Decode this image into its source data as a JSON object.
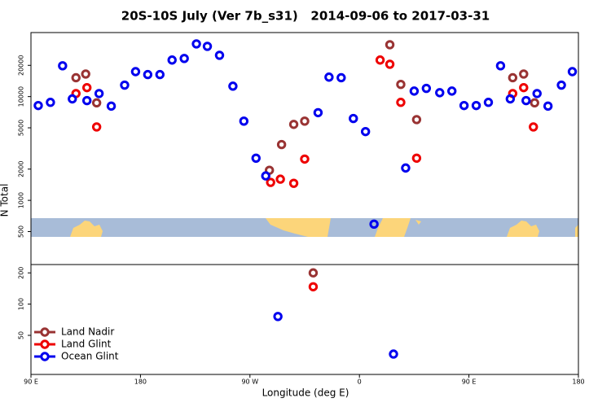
{
  "chart_data": {
    "type": "scatter",
    "title": "20S-10S July (Ver 7b_s31)   2014-09-06 to 2017-03-31",
    "x_label": "Longitude (deg E)",
    "y_label": "N Total",
    "xlim": [
      -270,
      180
    ],
    "ylim": [
      21,
      41400
    ],
    "log_y": true,
    "xticks": [
      {
        "value": -270,
        "label": "90 E"
      },
      {
        "value": -180,
        "label": "180"
      },
      {
        "value": -90,
        "label": "90 W"
      },
      0,
      {
        "value": 90,
        "label": "90 E"
      },
      {
        "value": 180,
        "label": "180"
      }
    ],
    "yticks": [
      50,
      100,
      200,
      500,
      1000,
      2000,
      5000,
      10000,
      20000
    ],
    "legend_position": "lower left",
    "series": [
      {
        "name": "Land Nadir",
        "color": "#993333",
        "x": [
          -233,
          -225,
          -216,
          -74,
          -64,
          -54,
          -45,
          -38,
          25,
          34,
          47,
          126,
          135,
          144
        ],
        "values": [
          15200,
          16500,
          8700,
          1950,
          3450,
          5400,
          5800,
          200,
          31600,
          13100,
          6000,
          15200,
          16500,
          8700
        ]
      },
      {
        "name": "Land Glint",
        "color": "#ee0000",
        "x": [
          -233,
          -224,
          -216,
          -73,
          -65,
          -54,
          -45,
          -38,
          17,
          25,
          34,
          47,
          126,
          135,
          143
        ],
        "values": [
          10700,
          12200,
          5100,
          1490,
          1600,
          1460,
          2500,
          147,
          22500,
          20500,
          8800,
          2550,
          10700,
          12200,
          5100
        ]
      },
      {
        "name": "Ocean Glint",
        "color": "#0000ee",
        "x": [
          -264,
          -254,
          -244,
          -236,
          -224,
          -214,
          -204,
          -193,
          -184,
          -174,
          -164,
          -154,
          -144,
          -134,
          -125,
          -115,
          -104,
          -95,
          -85,
          -77,
          -67,
          -34,
          -25,
          -15,
          -5,
          5,
          12,
          28,
          38,
          45,
          55,
          66,
          76,
          86,
          96,
          106,
          116,
          124,
          137,
          146,
          155,
          166,
          175
        ],
        "values": [
          8200,
          8800,
          19800,
          9500,
          9150,
          10700,
          8100,
          12900,
          17400,
          16300,
          16300,
          22500,
          23300,
          32200,
          30500,
          25000,
          12600,
          5800,
          2550,
          1720,
          76,
          7000,
          15400,
          15200,
          6150,
          4600,
          590,
          33,
          2050,
          11300,
          12000,
          10900,
          11300,
          8200,
          8200,
          8800,
          19800,
          9500,
          9150,
          10700,
          8100,
          12900,
          17400
        ]
      }
    ]
  }
}
